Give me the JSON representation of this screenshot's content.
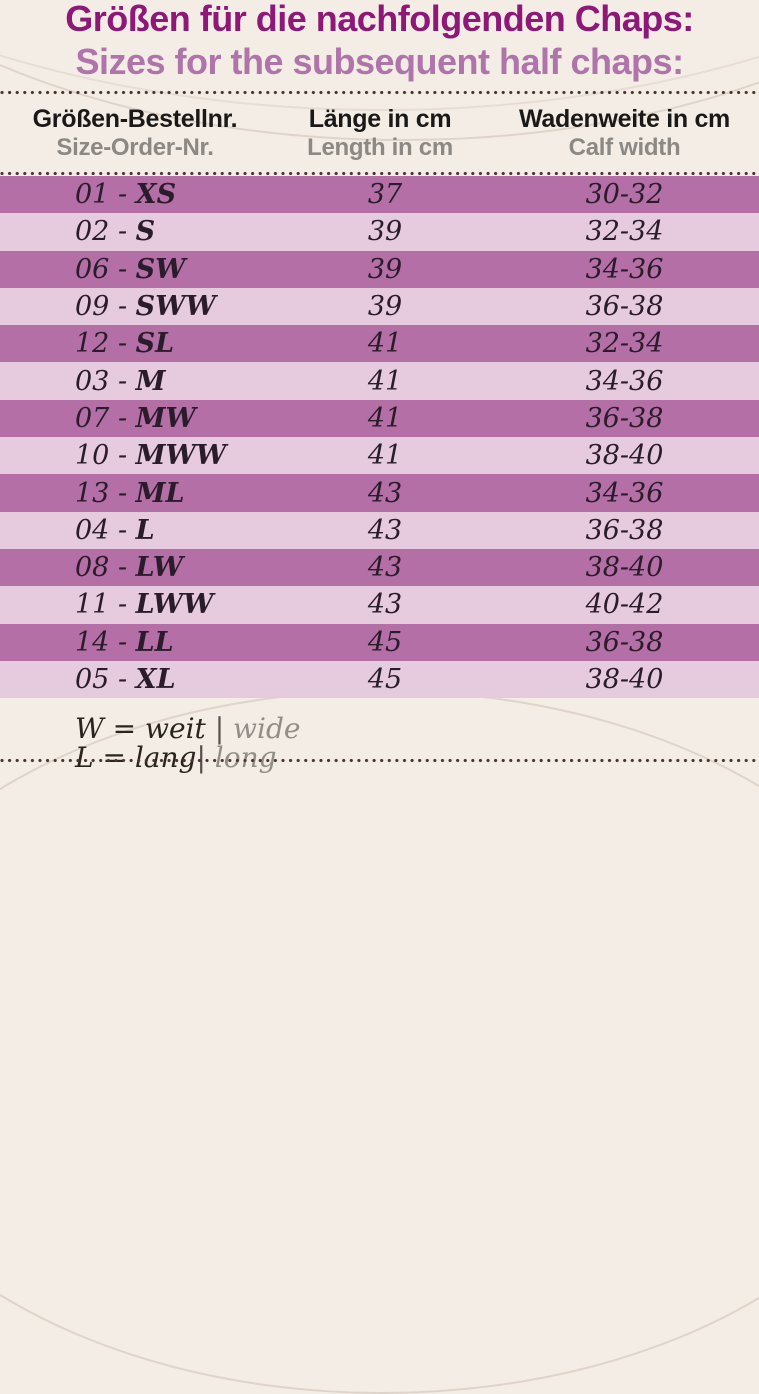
{
  "title": {
    "de": "Größen für die nachfolgenden Chaps:",
    "en": "Sizes for the subsequent half chaps:"
  },
  "columns": [
    {
      "de": "Größen-Bestellnr.",
      "en": "Size-Order-Nr."
    },
    {
      "de": "Länge in cm",
      "en": "Length in cm"
    },
    {
      "de": "Wadenweite in cm",
      "en": "Calf width"
    }
  ],
  "table": {
    "separator": " - ",
    "rows": [
      {
        "order": "01",
        "code": "XS",
        "length_cm": "37",
        "calf_cm": "30-32"
      },
      {
        "order": "02",
        "code": "S",
        "length_cm": "39",
        "calf_cm": "32-34"
      },
      {
        "order": "06",
        "code": "SW",
        "length_cm": "39",
        "calf_cm": "34-36"
      },
      {
        "order": "09",
        "code": "SWW",
        "length_cm": "39",
        "calf_cm": "36-38"
      },
      {
        "order": "12",
        "code": "SL",
        "length_cm": "41",
        "calf_cm": "32-34"
      },
      {
        "order": "03",
        "code": "M",
        "length_cm": "41",
        "calf_cm": "34-36"
      },
      {
        "order": "07",
        "code": "MW",
        "length_cm": "41",
        "calf_cm": "36-38"
      },
      {
        "order": "10",
        "code": "MWW",
        "length_cm": "41",
        "calf_cm": "38-40"
      },
      {
        "order": "13",
        "code": "ML",
        "length_cm": "43",
        "calf_cm": "34-36"
      },
      {
        "order": "04",
        "code": "L",
        "length_cm": "43",
        "calf_cm": "36-38"
      },
      {
        "order": "08",
        "code": "LW",
        "length_cm": "43",
        "calf_cm": "38-40"
      },
      {
        "order": "11",
        "code": "LWW",
        "length_cm": "43",
        "calf_cm": "40-42"
      },
      {
        "order": "14",
        "code": "LL",
        "length_cm": "45",
        "calf_cm": "36-38"
      },
      {
        "order": "05",
        "code": "XL",
        "length_cm": "45",
        "calf_cm": "38-40"
      }
    ]
  },
  "footer": {
    "lines": [
      {
        "de": "W = weit ",
        "sep": "|",
        "en": " wide"
      },
      {
        "de": "L = lang",
        "sep": "|",
        "en": " long"
      }
    ]
  },
  "colors": {
    "background": "#f4ede6",
    "title_de": "#8e1877",
    "title_en": "#af74a9",
    "row_dark": "#b36fa6",
    "row_light": "#e6cbde",
    "row_text": "#2a1c2b",
    "header_de": "#1b1918",
    "header_en": "#8c8883",
    "dots": "#4a362f"
  }
}
